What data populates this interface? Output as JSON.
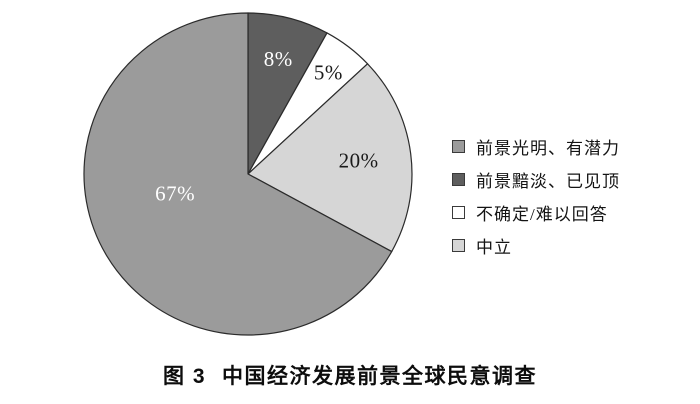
{
  "chart_data": {
    "type": "pie",
    "title": "图 3 中国经济发展前景全球民意调查",
    "direction": "clockwise",
    "start_angle_deg_from_12_oclock": 0,
    "legend_position": "right",
    "outline_color": "#2b2b2b",
    "background_color": "#ffffff",
    "slices": [
      {
        "label": "前景黯淡、已见顶",
        "value": 8,
        "display": "8%",
        "color": "#5e5e5e",
        "text_color": "#ffffff"
      },
      {
        "label": "不确定/难以回答",
        "value": 5,
        "display": "5%",
        "color": "#ffffff",
        "text_color": "#1a1a1a"
      },
      {
        "label": "中立",
        "value": 20,
        "display": "20%",
        "color": "#d6d6d6",
        "text_color": "#1a1a1a"
      },
      {
        "label": "前景光明、有潜力",
        "value": 67,
        "display": "67%",
        "color": "#9b9b9b",
        "text_color": "#ffffff"
      }
    ],
    "legend": [
      {
        "label": "前景光明、有潜力",
        "color": "#9b9b9b"
      },
      {
        "label": "前景黯淡、已见顶",
        "color": "#5e5e5e"
      },
      {
        "label": "不确定/难以回答",
        "color": "#ffffff"
      },
      {
        "label": "中立",
        "color": "#d6d6d6"
      }
    ]
  },
  "caption": {
    "figure_label": "图 3",
    "text": "中国经济发展前景全球民意调查"
  }
}
